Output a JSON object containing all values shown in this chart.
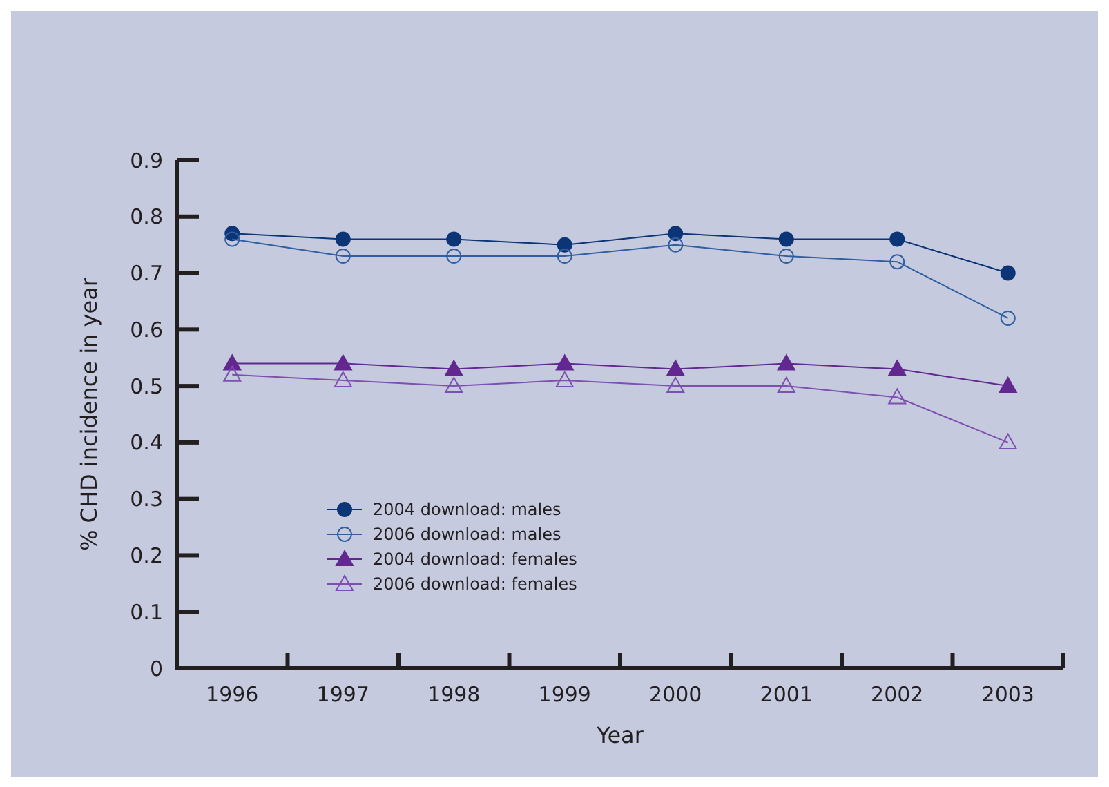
{
  "chart_data": {
    "type": "line",
    "xlabel": "Year",
    "ylabel": "% CHD incidence in year",
    "categories": [
      "1996",
      "1997",
      "1998",
      "1999",
      "2000",
      "2001",
      "2002",
      "2003"
    ],
    "ylim": [
      0,
      0.9
    ],
    "yticks": [
      0,
      0.1,
      0.2,
      0.3,
      0.4,
      0.5,
      0.6,
      0.7,
      0.8,
      0.9
    ],
    "grid": false,
    "legend": "left",
    "series": [
      {
        "name": "2004 download: males",
        "color": "#0b3577",
        "marker": "circle",
        "values": [
          0.77,
          0.76,
          0.76,
          0.75,
          0.77,
          0.76,
          0.76,
          0.7
        ]
      },
      {
        "name": "2006 download: males",
        "color": "#2f5fa0",
        "marker": "circle",
        "values": [
          0.76,
          0.73,
          0.73,
          0.73,
          0.75,
          0.73,
          0.72,
          0.62
        ]
      },
      {
        "name": "2004 download: females",
        "color": "#62288f",
        "marker": "triangle",
        "values": [
          0.54,
          0.54,
          0.53,
          0.54,
          0.53,
          0.54,
          0.53,
          0.5
        ]
      },
      {
        "name": "2006 download: females",
        "color": "#7e4fb0",
        "marker": "triangle",
        "values": [
          0.52,
          0.51,
          0.5,
          0.51,
          0.5,
          0.5,
          0.48,
          0.4
        ]
      }
    ]
  }
}
